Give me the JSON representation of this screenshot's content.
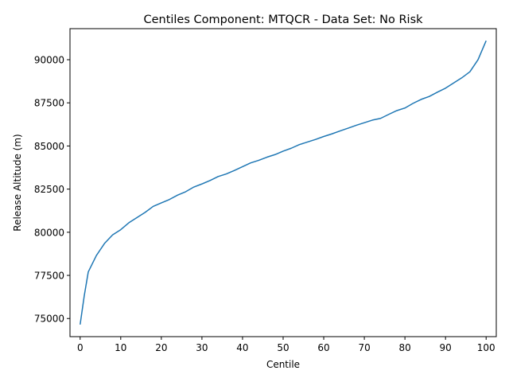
{
  "chart_data": {
    "type": "line",
    "title": "Centiles Component: MTQCR - Data Set: No Risk",
    "xlabel": "Centile",
    "ylabel": "Release Altitude (m)",
    "xlim": [
      -2.5,
      102.5
    ],
    "ylim": [
      73950,
      91800
    ],
    "x_ticks": [
      0,
      10,
      20,
      30,
      40,
      50,
      60,
      70,
      80,
      90,
      100
    ],
    "y_ticks": [
      75000,
      77500,
      80000,
      82500,
      85000,
      87500,
      90000
    ],
    "x_tick_labels": [
      "0",
      "10",
      "20",
      "30",
      "40",
      "50",
      "60",
      "70",
      "80",
      "90",
      "100"
    ],
    "y_tick_labels": [
      "75000",
      "77500",
      "80000",
      "82500",
      "85000",
      "87500",
      "90000"
    ],
    "grid": false,
    "line_color": "#1f77b4",
    "series": [
      {
        "x": [
          0,
          1,
          2,
          4,
          6,
          8,
          10,
          12,
          14,
          16,
          18,
          20,
          22,
          24,
          26,
          28,
          30,
          32,
          34,
          36,
          38,
          40,
          42,
          44,
          46,
          48,
          50,
          52,
          54,
          56,
          58,
          60,
          62,
          64,
          66,
          68,
          70,
          72,
          74,
          76,
          78,
          80,
          82,
          84,
          86,
          88,
          90,
          92,
          94,
          96,
          98,
          100
        ],
        "y": [
          74650,
          76300,
          77700,
          78650,
          79350,
          79850,
          80150,
          80550,
          80850,
          81150,
          81500,
          81700,
          81900,
          82150,
          82350,
          82620,
          82800,
          83000,
          83230,
          83380,
          83580,
          83800,
          84020,
          84170,
          84350,
          84500,
          84700,
          84870,
          85080,
          85230,
          85380,
          85550,
          85700,
          85870,
          86030,
          86200,
          86350,
          86500,
          86600,
          86830,
          87050,
          87200,
          87470,
          87700,
          87870,
          88120,
          88350,
          88650,
          88950,
          89300,
          90000,
          91100
        ]
      }
    ]
  }
}
